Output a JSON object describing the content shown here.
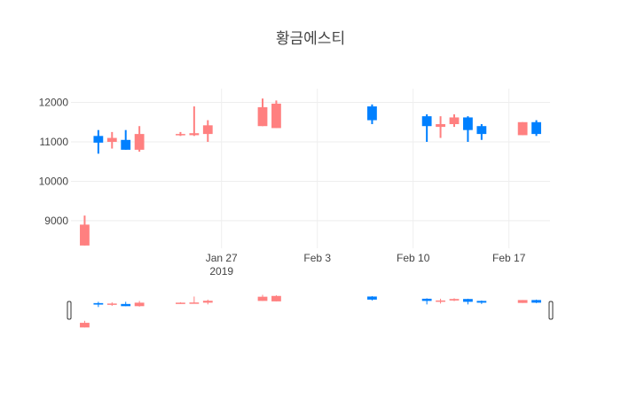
{
  "chart_data": {
    "type": "candlestick",
    "title": "황금에스티",
    "xaxis": {
      "type": "date",
      "range": [
        "2019-01-16",
        "2019-02-20"
      ],
      "ticks": [
        {
          "date": "2019-01-27",
          "label": "Jan 27",
          "sublabel": "2019"
        },
        {
          "date": "2019-02-03",
          "label": "Feb 3",
          "sublabel": ""
        },
        {
          "date": "2019-02-10",
          "label": "Feb 10",
          "sublabel": ""
        },
        {
          "date": "2019-02-17",
          "label": "Feb 17",
          "sublabel": ""
        }
      ]
    },
    "yaxis": {
      "range": [
        8300,
        12350
      ],
      "ticks": [
        9000,
        10000,
        11000,
        12000
      ],
      "tick_labels": [
        "9000",
        "10000",
        "11000",
        "12000"
      ]
    },
    "increasing_color": "#ff8080",
    "decreasing_color": "#0080ff",
    "grid": true,
    "rangeslider": true,
    "ohlc": [
      {
        "date": "2019-01-17",
        "open": 8370,
        "high": 9130,
        "low": 8370,
        "close": 8900
      },
      {
        "date": "2019-01-18",
        "open": 11150,
        "high": 11300,
        "low": 10700,
        "close": 10980
      },
      {
        "date": "2019-01-19",
        "open": 11000,
        "high": 11250,
        "low": 10830,
        "close": 11100
      },
      {
        "date": "2019-01-20",
        "open": 11050,
        "high": 11300,
        "low": 10800,
        "close": 10800
      },
      {
        "date": "2019-01-21",
        "open": 10800,
        "high": 11400,
        "low": 10750,
        "close": 11200
      },
      {
        "date": "2019-01-24",
        "open": 11200,
        "high": 11250,
        "low": 11150,
        "close": 11200
      },
      {
        "date": "2019-01-25",
        "open": 11170,
        "high": 11900,
        "low": 11150,
        "close": 11220
      },
      {
        "date": "2019-01-26",
        "open": 11200,
        "high": 11550,
        "low": 11000,
        "close": 11420
      },
      {
        "date": "2019-01-30",
        "open": 11400,
        "high": 12100,
        "low": 11400,
        "close": 11880
      },
      {
        "date": "2019-01-31",
        "open": 11350,
        "high": 12050,
        "low": 11350,
        "close": 11970
      },
      {
        "date": "2019-02-07",
        "open": 11900,
        "high": 11950,
        "low": 11450,
        "close": 11550
      },
      {
        "date": "2019-02-11",
        "open": 11650,
        "high": 11700,
        "low": 11000,
        "close": 11400
      },
      {
        "date": "2019-02-12",
        "open": 11380,
        "high": 11650,
        "low": 11100,
        "close": 11450
      },
      {
        "date": "2019-02-13",
        "open": 11450,
        "high": 11700,
        "low": 11380,
        "close": 11620
      },
      {
        "date": "2019-02-14",
        "open": 11620,
        "high": 11650,
        "low": 11000,
        "close": 11300
      },
      {
        "date": "2019-02-15",
        "open": 11400,
        "high": 11450,
        "low": 11050,
        "close": 11200
      },
      {
        "date": "2019-02-18",
        "open": 11170,
        "high": 11500,
        "low": 11170,
        "close": 11500
      },
      {
        "date": "2019-02-19",
        "open": 11500,
        "high": 11550,
        "low": 11150,
        "close": 11200
      }
    ]
  }
}
